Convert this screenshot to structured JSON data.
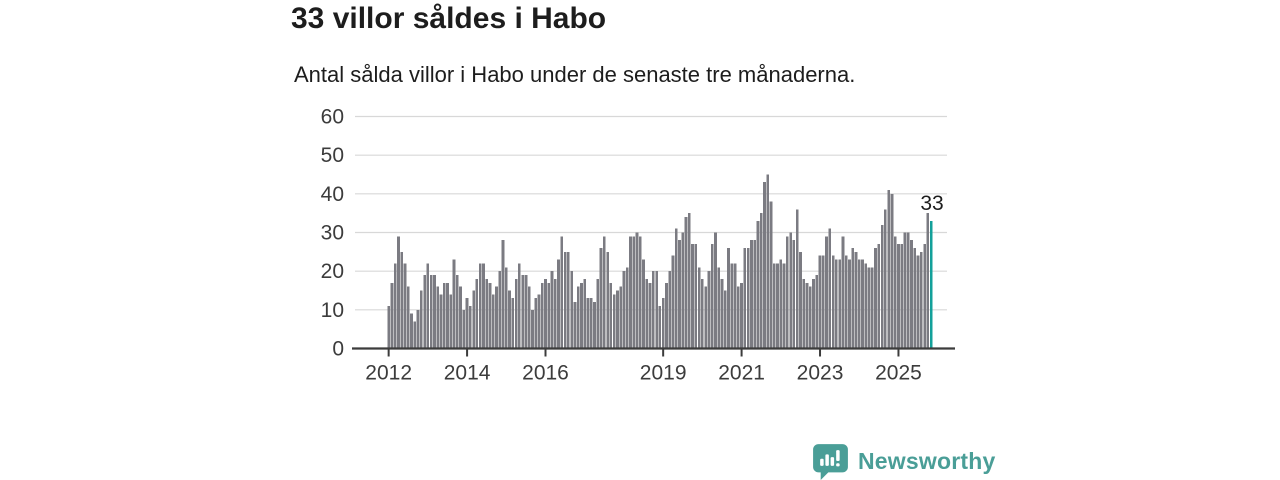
{
  "header": {
    "title": "33 villor såldes i Habo",
    "subtitle": "Antal sålda villor i Habo under de senaste tre månaderna."
  },
  "chart_data": {
    "type": "bar",
    "title": "33 villor såldes i Habo",
    "subtitle": "Antal sålda villor i Habo under de senaste tre månaderna.",
    "x_unit": "month",
    "x_start_year": "2012",
    "values": [
      11,
      17,
      22,
      29,
      25,
      22,
      16,
      9,
      7,
      10,
      15,
      19,
      22,
      19,
      19,
      16,
      14,
      17,
      17,
      14,
      23,
      19,
      16,
      10,
      13,
      11,
      15,
      18,
      22,
      22,
      18,
      17,
      14,
      16,
      20,
      28,
      21,
      15,
      13,
      18,
      22,
      19,
      19,
      16,
      10,
      13,
      14,
      17,
      18,
      17,
      20,
      18,
      23,
      29,
      25,
      25,
      20,
      12,
      16,
      17,
      18,
      13,
      13,
      12,
      18,
      26,
      29,
      25,
      17,
      14,
      15,
      16,
      20,
      21,
      29,
      29,
      30,
      29,
      23,
      18,
      17,
      20,
      20,
      11,
      13,
      17,
      20,
      24,
      31,
      28,
      30,
      34,
      35,
      27,
      27,
      21,
      18,
      16,
      20,
      27,
      30,
      21,
      18,
      15,
      26,
      22,
      22,
      16,
      17,
      26,
      26,
      28,
      28,
      33,
      35,
      43,
      45,
      38,
      22,
      22,
      23,
      22,
      29,
      30,
      28,
      36,
      25,
      18,
      17,
      16,
      18,
      19,
      24,
      24,
      29,
      31,
      24,
      23,
      23,
      29,
      24,
      23,
      26,
      25,
      23,
      23,
      22,
      21,
      21,
      26,
      27,
      32,
      36,
      41,
      40,
      29,
      27,
      27,
      30,
      30,
      28,
      26,
      24,
      25,
      27,
      35,
      33
    ],
    "highlight_last": true,
    "highlight_label": "33",
    "ylim": [
      0,
      60
    ],
    "y_ticks": [
      "0",
      "10",
      "20",
      "30",
      "40",
      "50",
      "60"
    ],
    "x_ticks": [
      {
        "label": "2012",
        "month_index": 0
      },
      {
        "label": "2014",
        "month_index": 24
      },
      {
        "label": "2016",
        "month_index": 48
      },
      {
        "label": "2019",
        "month_index": 84
      },
      {
        "label": "2021",
        "month_index": 108
      },
      {
        "label": "2023",
        "month_index": 132
      },
      {
        "label": "2025",
        "month_index": 156
      }
    ],
    "grid": true,
    "legend": "none",
    "bar_color": "#7b7b82",
    "highlight_color": "#13a09a",
    "grid_color": "#d8d8d8",
    "axis_color": "#3c3c3c",
    "tick_label_color": "#3c3c3c"
  },
  "footer": {
    "brand": "Newsworthy",
    "brand_color": "#4a9e97"
  }
}
